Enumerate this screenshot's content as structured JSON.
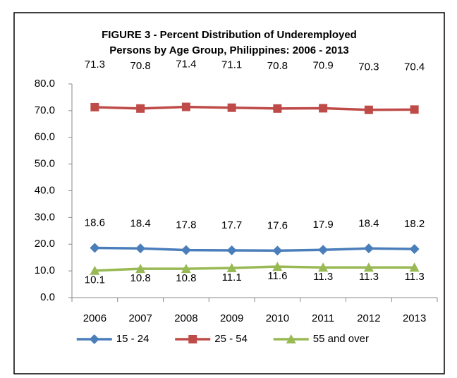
{
  "chart_data": {
    "type": "line",
    "title": [
      "FIGURE 3 - Percent Distribution of Underemployed",
      "Persons by Age Group, Philippines:  2006 - 2013"
    ],
    "categories": [
      "2006",
      "2007",
      "2008",
      "2009",
      "2010",
      "2011",
      "2012",
      "2013"
    ],
    "series": [
      {
        "name": "15 - 24",
        "color": "#4a7ebb",
        "marker": "diamond",
        "values": [
          18.6,
          18.4,
          17.8,
          17.7,
          17.6,
          17.9,
          18.4,
          18.2
        ]
      },
      {
        "name": "25 - 54",
        "color": "#be4b48",
        "marker": "square",
        "values": [
          71.3,
          70.8,
          71.4,
          71.1,
          70.8,
          70.9,
          70.3,
          70.4
        ]
      },
      {
        "name": "55 and over",
        "color": "#98b954",
        "marker": "triangle",
        "values": [
          10.1,
          10.8,
          10.8,
          11.1,
          11.6,
          11.3,
          11.3,
          11.3
        ]
      }
    ],
    "ylim": [
      0,
      80
    ],
    "yticks": [
      {
        "value": 0,
        "label": "0.0"
      },
      {
        "value": 10,
        "label": "10.0"
      },
      {
        "value": 20,
        "label": "20.0"
      },
      {
        "value": 30,
        "label": "30.0"
      },
      {
        "value": 40,
        "label": "40.0"
      },
      {
        "value": 50,
        "label": "50.0"
      },
      {
        "value": 60,
        "label": "60.0"
      },
      {
        "value": 70,
        "label": "70.0"
      },
      {
        "value": 80,
        "label": "80.0"
      }
    ],
    "grid": false,
    "legend": "bottom"
  }
}
